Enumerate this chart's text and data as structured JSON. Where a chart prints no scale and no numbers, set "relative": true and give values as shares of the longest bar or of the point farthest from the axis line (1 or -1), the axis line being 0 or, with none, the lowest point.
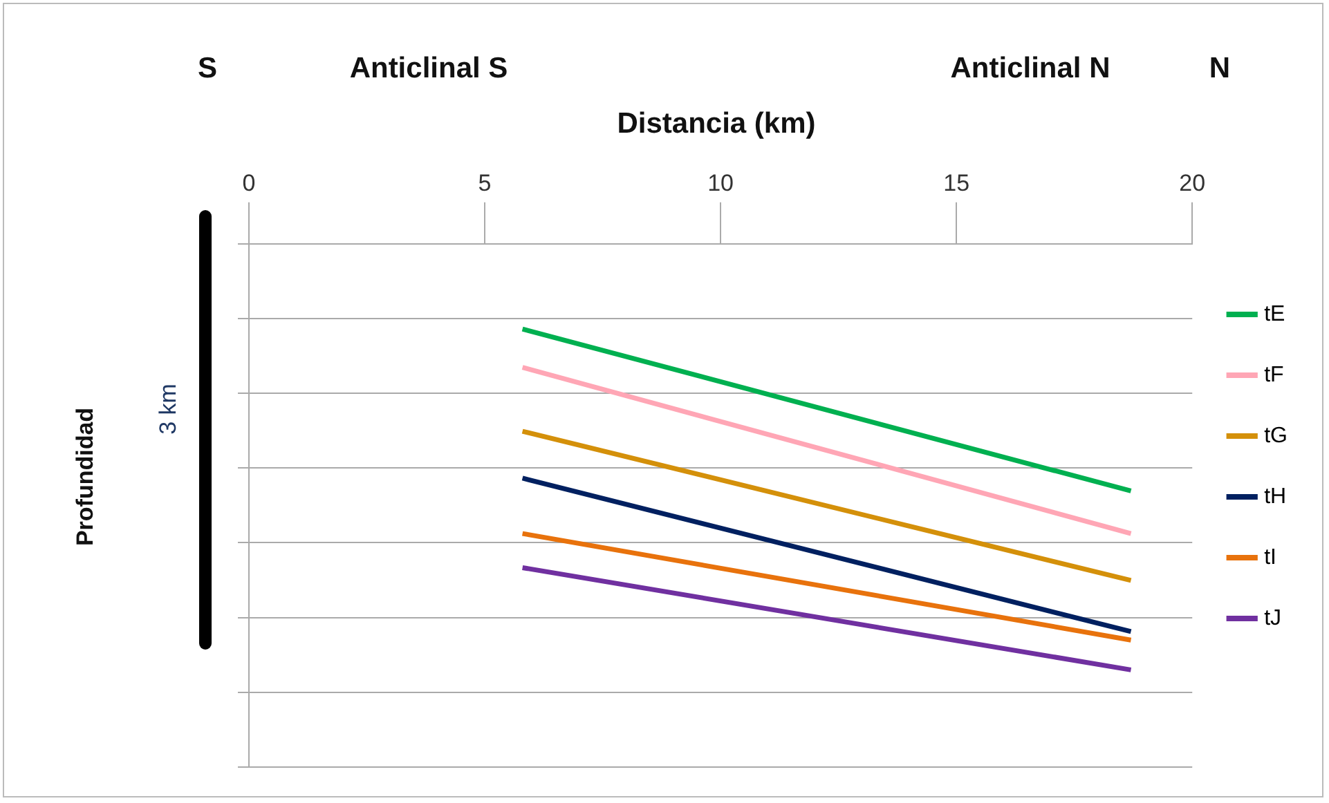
{
  "chart_data": {
    "type": "line",
    "relative": true,
    "xlabel": "Distancia (km)",
    "annotations": [
      "S",
      "Anticlinal S",
      "Anticlinal N",
      "N",
      "3 km",
      "Profundidad"
    ],
    "xlim": [
      0,
      20
    ],
    "xticks": [
      0,
      5,
      10,
      15,
      20
    ],
    "grid": "y",
    "legend": "right",
    "marker": "none",
    "line_style": "solid",
    "x": [
      5.8,
      18.7
    ],
    "series": [
      {
        "name": "tE",
        "color": "#00b050",
        "values": [
          -0.2,
          -0.58
        ]
      },
      {
        "name": "tF",
        "color": "#ffa6b5",
        "values": [
          -0.29,
          -0.68
        ]
      },
      {
        "name": "tG",
        "color": "#d4900a",
        "values": [
          -0.44,
          -0.79
        ]
      },
      {
        "name": "tH",
        "color": "#002060",
        "values": [
          -0.55,
          -0.91
        ]
      },
      {
        "name": "tI",
        "color": "#e8720c",
        "values": [
          -0.68,
          -0.93
        ]
      },
      {
        "name": "tJ",
        "color": "#7030a0",
        "values": [
          -0.76,
          -1
        ]
      }
    ]
  }
}
